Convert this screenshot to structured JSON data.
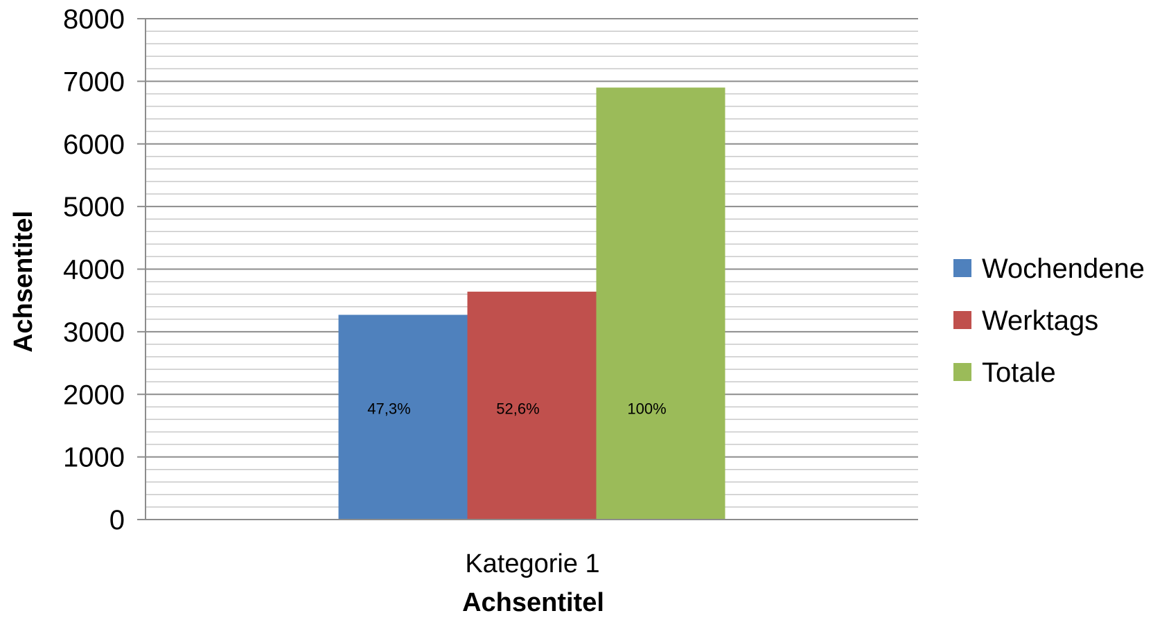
{
  "chart_data": {
    "type": "bar",
    "categories": [
      "Kategorie 1"
    ],
    "series": [
      {
        "name": "Wochendene",
        "values": [
          3270
        ],
        "data_label": "47,3%",
        "color": "#4F81BD"
      },
      {
        "name": "Werktags",
        "values": [
          3640
        ],
        "data_label": "52,6%",
        "color": "#C0504D"
      },
      {
        "name": "Totale",
        "values": [
          6900
        ],
        "data_label": "100%",
        "color": "#9BBB59"
      }
    ],
    "xlabel": "Achsentitel",
    "ylabel": "Achsentitel",
    "ylim": [
      0,
      8000
    ],
    "yticks": [
      "0",
      "1000",
      "2000",
      "3000",
      "4000",
      "5000",
      "6000",
      "7000",
      "8000"
    ],
    "minor_grid": true,
    "grid": true,
    "legend_position": "right"
  }
}
